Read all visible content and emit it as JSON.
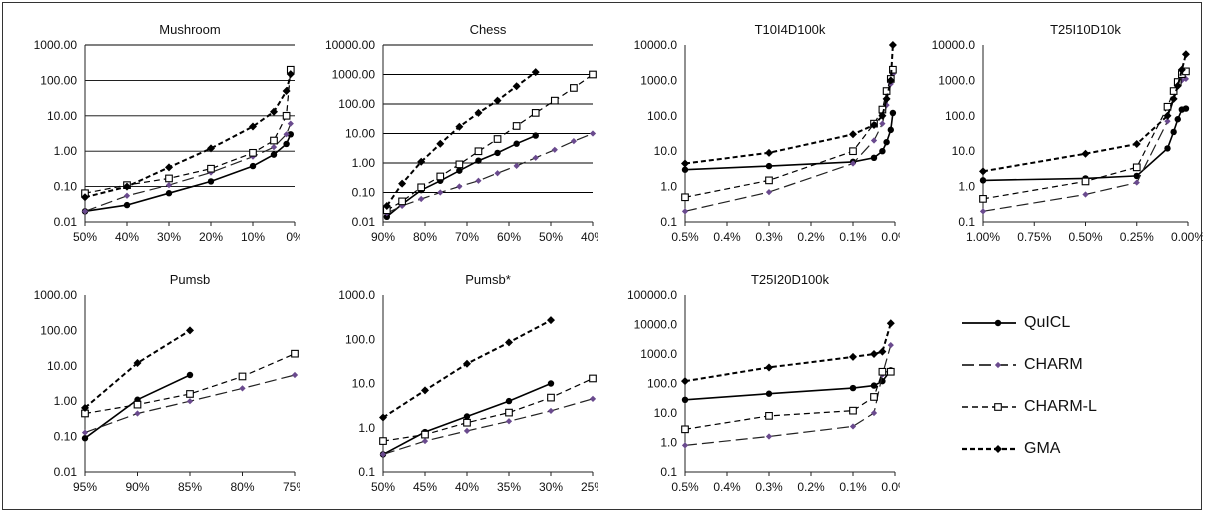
{
  "legend": [
    {
      "name": "QuICL",
      "style": "solid",
      "marker": "dot",
      "color": "#000000"
    },
    {
      "name": "CHARM",
      "style": "longdash",
      "marker": "smallstar",
      "color": "#6a4a8e"
    },
    {
      "name": "CHARM-L",
      "style": "dash",
      "marker": "square",
      "color": "#000000"
    },
    {
      "name": "GMA",
      "style": "dense",
      "marker": "diamond",
      "color": "#000000"
    }
  ],
  "chart_data": [
    {
      "type": "line",
      "title": "Mushroom",
      "yscale": "log",
      "yticks": [
        "1000.00",
        "100.00",
        "10.00",
        "1.00",
        "0.10",
        "0.01"
      ],
      "xticks": [
        "50%",
        "40%",
        "30%",
        "20%",
        "10%",
        "0%"
      ],
      "xlim": [
        50,
        0
      ],
      "ylim": [
        0.01,
        1000
      ],
      "grid": "horizontal",
      "series": [
        {
          "name": "QuICL",
          "x": [
            50,
            40,
            30,
            20,
            10,
            5,
            2,
            1
          ],
          "y": [
            0.02,
            0.03,
            0.065,
            0.14,
            0.38,
            0.8,
            1.6,
            3
          ]
        },
        {
          "name": "CHARM",
          "x": [
            50,
            40,
            30,
            20,
            10,
            5,
            2,
            1
          ],
          "y": [
            0.02,
            0.055,
            0.11,
            0.25,
            0.7,
            1.3,
            3,
            6
          ]
        },
        {
          "name": "CHARM-L",
          "x": [
            50,
            40,
            30,
            20,
            10,
            5,
            2,
            1
          ],
          "y": [
            0.065,
            0.11,
            0.17,
            0.32,
            0.9,
            2,
            10,
            200
          ]
        },
        {
          "name": "GMA",
          "x": [
            50,
            40,
            30,
            20,
            10,
            5,
            2,
            1
          ],
          "y": [
            0.05,
            0.1,
            0.35,
            1.2,
            5,
            13,
            50,
            150
          ]
        }
      ]
    },
    {
      "type": "line",
      "title": "Chess",
      "yscale": "log",
      "yticks": [
        "10000.00",
        "1000.00",
        "100.00",
        "10.00",
        "1.00",
        "0.10",
        "0.01"
      ],
      "xticks": [
        "90%",
        "80%",
        "70%",
        "60%",
        "50%",
        "40%"
      ],
      "xlim": [
        95,
        40
      ],
      "ylim": [
        0.01,
        10000
      ],
      "grid": "horizontal",
      "series": [
        {
          "name": "QuICL",
          "x": [
            94,
            90,
            85,
            80,
            75,
            70,
            65,
            60,
            55
          ],
          "y": [
            0.015,
            0.04,
            0.12,
            0.25,
            0.55,
            1.2,
            2.2,
            4.5,
            8.5
          ]
        },
        {
          "name": "CHARM",
          "x": [
            94,
            90,
            85,
            80,
            75,
            70,
            65,
            60,
            55,
            50,
            45,
            40
          ],
          "y": [
            0.02,
            0.035,
            0.06,
            0.1,
            0.16,
            0.25,
            0.45,
            0.8,
            1.5,
            2.8,
            5.5,
            10
          ]
        },
        {
          "name": "CHARM-L",
          "x": [
            94,
            90,
            85,
            80,
            75,
            70,
            65,
            60,
            55,
            50,
            45,
            40
          ],
          "y": [
            0.025,
            0.05,
            0.15,
            0.35,
            0.9,
            2.5,
            6.5,
            18,
            50,
            130,
            350,
            1000
          ]
        },
        {
          "name": "GMA",
          "x": [
            94,
            90,
            85,
            80,
            75,
            70,
            65,
            60,
            55
          ],
          "y": [
            0.035,
            0.2,
            1.1,
            4.5,
            17,
            50,
            130,
            400,
            1200
          ]
        }
      ]
    },
    {
      "type": "line",
      "title": "T10I4D100k",
      "yscale": "log",
      "yticks": [
        "10000.0",
        "1000.0",
        "100.0",
        "10.0",
        "1.0",
        "0.1"
      ],
      "xticks": [
        "0.5%",
        "0.4%",
        "0.3%",
        "0.2%",
        "0.1%",
        "0.0%"
      ],
      "xlim": [
        0.5,
        0.0
      ],
      "ylim": [
        0.1,
        10000
      ],
      "grid": "none",
      "series": [
        {
          "name": "QuICL",
          "x": [
            0.5,
            0.3,
            0.1,
            0.05,
            0.03,
            0.02,
            0.01,
            0.005
          ],
          "y": [
            3,
            3.8,
            5,
            6.5,
            10,
            18,
            40,
            120
          ]
        },
        {
          "name": "CHARM",
          "x": [
            0.5,
            0.3,
            0.1,
            0.05,
            0.03,
            0.02,
            0.01,
            0.005
          ],
          "y": [
            0.2,
            0.7,
            4.5,
            20,
            60,
            200,
            800,
            1500
          ]
        },
        {
          "name": "CHARM-L",
          "x": [
            0.5,
            0.3,
            0.1,
            0.05,
            0.03,
            0.02,
            0.01,
            0.005
          ],
          "y": [
            0.5,
            1.5,
            10,
            60,
            150,
            500,
            1100,
            2000
          ]
        },
        {
          "name": "GMA",
          "x": [
            0.5,
            0.3,
            0.1,
            0.05,
            0.03,
            0.02,
            0.01,
            0.005
          ],
          "y": [
            4.5,
            9,
            30,
            55,
            100,
            300,
            1000,
            10000
          ]
        }
      ]
    },
    {
      "type": "line",
      "title": "T25I10D10k",
      "yscale": "log",
      "yticks": [
        "10000.0",
        "1000.0",
        "100.0",
        "10.0",
        "1.0",
        "0.1"
      ],
      "xticks": [
        "1.00%",
        "0.75%",
        "0.50%",
        "0.25%",
        "0.00%"
      ],
      "xlim": [
        1.0,
        0.0
      ],
      "ylim": [
        0.1,
        10000
      ],
      "grid": "none",
      "series": [
        {
          "name": "QuICL",
          "x": [
            1.0,
            0.5,
            0.25,
            0.1,
            0.07,
            0.05,
            0.03,
            0.01
          ],
          "y": [
            1.5,
            1.7,
            2,
            12,
            35,
            80,
            150,
            160
          ]
        },
        {
          "name": "CHARM",
          "x": [
            1.0,
            0.5,
            0.25,
            0.1,
            0.07,
            0.05,
            0.03,
            0.01
          ],
          "y": [
            0.2,
            0.6,
            1.3,
            70,
            300,
            700,
            1000,
            1100
          ]
        },
        {
          "name": "CHARM-L",
          "x": [
            1.0,
            0.5,
            0.25,
            0.1,
            0.07,
            0.05,
            0.03,
            0.01
          ],
          "y": [
            0.45,
            1.4,
            3.5,
            180,
            500,
            900,
            1500,
            1800
          ]
        },
        {
          "name": "GMA",
          "x": [
            1.0,
            0.5,
            0.25,
            0.1,
            0.07,
            0.05,
            0.03,
            0.01
          ],
          "y": [
            2.7,
            8.5,
            16,
            100,
            300,
            700,
            2000,
            5500
          ]
        }
      ]
    },
    {
      "type": "line",
      "title": "Pumsb",
      "yscale": "log",
      "yticks": [
        "1000.00",
        "100.00",
        "10.00",
        "1.00",
        "0.10",
        "0.01"
      ],
      "xticks": [
        "95%",
        "90%",
        "85%",
        "80%",
        "75%"
      ],
      "xlim": [
        95,
        75
      ],
      "ylim": [
        0.01,
        1000
      ],
      "grid": "none",
      "series": [
        {
          "name": "QuICL",
          "x": [
            95,
            90,
            85
          ],
          "y": [
            0.09,
            1.1,
            5.5
          ]
        },
        {
          "name": "CHARM",
          "x": [
            95,
            90,
            85,
            80,
            75
          ],
          "y": [
            0.13,
            0.45,
            1.0,
            2.3,
            5.5
          ]
        },
        {
          "name": "CHARM-L",
          "x": [
            95,
            90,
            85,
            80,
            75
          ],
          "y": [
            0.45,
            0.8,
            1.6,
            5,
            22
          ]
        },
        {
          "name": "GMA",
          "x": [
            95,
            90,
            85
          ],
          "y": [
            0.65,
            12,
            100
          ]
        }
      ]
    },
    {
      "type": "line",
      "title": "Pumsb*",
      "yscale": "log",
      "yticks": [
        "1000.0",
        "100.0",
        "10.0",
        "1.0",
        "0.1"
      ],
      "xticks": [
        "50%",
        "45%",
        "40%",
        "35%",
        "30%",
        "25%"
      ],
      "xlim": [
        50,
        25
      ],
      "ylim": [
        0.1,
        1000
      ],
      "grid": "none",
      "series": [
        {
          "name": "QuICL",
          "x": [
            50,
            45,
            40,
            35,
            30
          ],
          "y": [
            0.25,
            0.8,
            1.8,
            4,
            10
          ]
        },
        {
          "name": "CHARM",
          "x": [
            50,
            45,
            40,
            35,
            30,
            25
          ],
          "y": [
            0.25,
            0.5,
            0.85,
            1.4,
            2.4,
            4.5
          ]
        },
        {
          "name": "CHARM-L",
          "x": [
            50,
            45,
            40,
            35,
            30,
            25
          ],
          "y": [
            0.5,
            0.7,
            1.3,
            2.2,
            4.8,
            13
          ]
        },
        {
          "name": "GMA",
          "x": [
            50,
            45,
            40,
            35,
            30
          ],
          "y": [
            1.7,
            7,
            28,
            85,
            270
          ]
        }
      ]
    },
    {
      "type": "line",
      "title": "T25I20D100k",
      "yscale": "log",
      "yticks": [
        "100000.0",
        "10000.0",
        "1000.0",
        "100.0",
        "10.0",
        "1.0",
        "0.1"
      ],
      "xticks": [
        "0.5%",
        "0.4%",
        "0.3%",
        "0.2%",
        "0.1%",
        "0.0%"
      ],
      "xlim": [
        0.5,
        0.0
      ],
      "ylim": [
        0.1,
        100000
      ],
      "grid": "none",
      "series": [
        {
          "name": "QuICL",
          "x": [
            0.5,
            0.3,
            0.1,
            0.05,
            0.03,
            0.01
          ],
          "y": [
            28,
            45,
            70,
            85,
            120,
            280
          ]
        },
        {
          "name": "CHARM",
          "x": [
            0.5,
            0.3,
            0.1,
            0.05,
            0.03,
            0.01
          ],
          "y": [
            0.8,
            1.6,
            3.5,
            10,
            200,
            2000
          ]
        },
        {
          "name": "CHARM-L",
          "x": [
            0.5,
            0.3,
            0.1,
            0.05,
            0.03,
            0.01
          ],
          "y": [
            2.8,
            8,
            12,
            35,
            250,
            250
          ]
        },
        {
          "name": "GMA",
          "x": [
            0.5,
            0.3,
            0.1,
            0.05,
            0.03,
            0.01
          ],
          "y": [
            120,
            350,
            800,
            1000,
            1200,
            11000
          ]
        }
      ]
    }
  ]
}
